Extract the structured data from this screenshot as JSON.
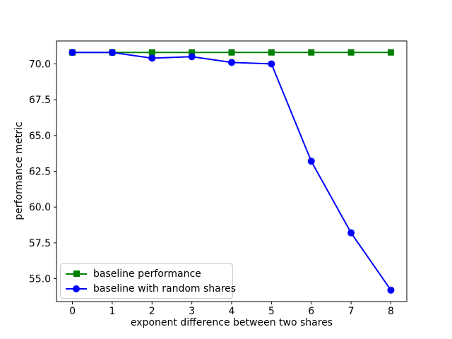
{
  "chart_data": {
    "type": "line",
    "title": "",
    "xlabel": "exponent difference between two shares",
    "ylabel": "performance metric",
    "x": [
      0,
      1,
      2,
      3,
      4,
      5,
      6,
      7,
      8
    ],
    "series": [
      {
        "name": "baseline performance",
        "color": "#008000",
        "marker": "square",
        "values": [
          70.8,
          70.8,
          70.8,
          70.8,
          70.8,
          70.8,
          70.8,
          70.8,
          70.8
        ]
      },
      {
        "name": "baseline with random shares",
        "color": "#0000ff",
        "marker": "circle",
        "values": [
          70.8,
          70.8,
          70.4,
          70.5,
          70.1,
          70.0,
          63.2,
          58.2,
          54.2
        ]
      }
    ],
    "xlim": [
      -0.4,
      8.4
    ],
    "ylim": [
      53.4,
      71.6
    ],
    "xticks": [
      0,
      1,
      2,
      3,
      4,
      5,
      6,
      7,
      8
    ],
    "xtick_labels": [
      "0",
      "1",
      "2",
      "3",
      "4",
      "5",
      "6",
      "7",
      "8"
    ],
    "yticks": [
      55.0,
      57.5,
      60.0,
      62.5,
      65.0,
      67.5,
      70.0
    ],
    "ytick_labels": [
      "55.0",
      "57.5",
      "60.0",
      "62.5",
      "65.0",
      "67.5",
      "70.0"
    ],
    "grid": false,
    "legend_position": "lower left",
    "spine_color": "#000000",
    "text_color": "#000000",
    "background_color": "#ffffff"
  }
}
